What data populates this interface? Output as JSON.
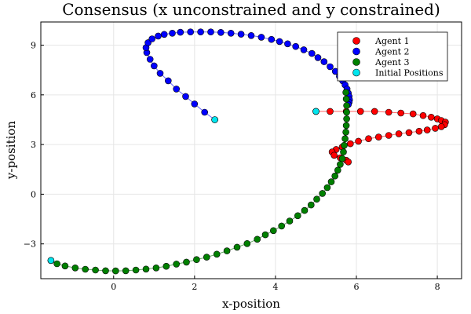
{
  "chart_data": {
    "type": "scatter",
    "title": "Consensus (x unconstrained and y constrained)",
    "xlabel": "x-position",
    "ylabel": "y-position",
    "xlim": [
      -1.8,
      8.6
    ],
    "ylim": [
      -5.1,
      10.4
    ],
    "xticks": [
      0,
      2,
      4,
      6,
      8
    ],
    "yticks": [
      -3,
      0,
      3,
      6,
      9
    ],
    "ytick_labels": [
      "−3",
      "0",
      "3",
      "6",
      "9"
    ],
    "grid": true,
    "legend_position": "top-right",
    "series": [
      {
        "name": "Agent 1",
        "color": "#ff0000",
        "line_color": "#ff6666",
        "points": [
          [
            5.0,
            5.0
          ],
          [
            5.35,
            5.0
          ],
          [
            5.75,
            5.0
          ],
          [
            6.1,
            5.0
          ],
          [
            6.45,
            5.0
          ],
          [
            6.8,
            4.95
          ],
          [
            7.1,
            4.9
          ],
          [
            7.4,
            4.85
          ],
          [
            7.65,
            4.75
          ],
          [
            7.85,
            4.65
          ],
          [
            8.0,
            4.55
          ],
          [
            8.1,
            4.45
          ],
          [
            8.2,
            4.35
          ],
          [
            8.18,
            4.2
          ],
          [
            8.1,
            4.08
          ],
          [
            7.95,
            3.98
          ],
          [
            7.75,
            3.88
          ],
          [
            7.55,
            3.8
          ],
          [
            7.3,
            3.72
          ],
          [
            7.05,
            3.65
          ],
          [
            6.8,
            3.55
          ],
          [
            6.55,
            3.45
          ],
          [
            6.3,
            3.35
          ],
          [
            6.05,
            3.2
          ],
          [
            5.85,
            3.05
          ],
          [
            5.65,
            2.85
          ],
          [
            5.5,
            2.7
          ],
          [
            5.4,
            2.55
          ],
          [
            5.45,
            2.35
          ],
          [
            5.6,
            2.2
          ],
          [
            5.75,
            2.05
          ],
          [
            5.8,
            1.95
          ]
        ]
      },
      {
        "name": "Agent 2",
        "color": "#0000ff",
        "line_color": "#6666ff",
        "points": [
          [
            2.5,
            4.5
          ],
          [
            2.25,
            4.95
          ],
          [
            2.0,
            5.45
          ],
          [
            1.78,
            5.9
          ],
          [
            1.55,
            6.35
          ],
          [
            1.35,
            6.85
          ],
          [
            1.15,
            7.3
          ],
          [
            1.0,
            7.75
          ],
          [
            0.9,
            8.15
          ],
          [
            0.82,
            8.55
          ],
          [
            0.8,
            8.85
          ],
          [
            0.85,
            9.15
          ],
          [
            0.95,
            9.38
          ],
          [
            1.1,
            9.55
          ],
          [
            1.25,
            9.65
          ],
          [
            1.45,
            9.72
          ],
          [
            1.65,
            9.78
          ],
          [
            1.9,
            9.8
          ],
          [
            2.15,
            9.8
          ],
          [
            2.4,
            9.8
          ],
          [
            2.65,
            9.77
          ],
          [
            2.9,
            9.72
          ],
          [
            3.15,
            9.66
          ],
          [
            3.4,
            9.58
          ],
          [
            3.65,
            9.48
          ],
          [
            3.9,
            9.35
          ],
          [
            4.1,
            9.22
          ],
          [
            4.3,
            9.08
          ],
          [
            4.5,
            8.92
          ],
          [
            4.7,
            8.72
          ],
          [
            4.9,
            8.5
          ],
          [
            5.05,
            8.25
          ],
          [
            5.2,
            8.0
          ],
          [
            5.35,
            7.7
          ],
          [
            5.48,
            7.42
          ],
          [
            5.58,
            7.12
          ],
          [
            5.66,
            6.85
          ],
          [
            5.72,
            6.6
          ],
          [
            5.77,
            6.35
          ],
          [
            5.8,
            6.1
          ],
          [
            5.82,
            5.9
          ],
          [
            5.83,
            5.7
          ],
          [
            5.82,
            5.55
          ],
          [
            5.8,
            5.42
          ]
        ]
      },
      {
        "name": "Agent 3",
        "color": "#008000",
        "line_color": "#66aa66",
        "points": [
          [
            -1.55,
            -4.0
          ],
          [
            -1.4,
            -4.2
          ],
          [
            -1.2,
            -4.33
          ],
          [
            -0.95,
            -4.45
          ],
          [
            -0.7,
            -4.53
          ],
          [
            -0.45,
            -4.58
          ],
          [
            -0.2,
            -4.62
          ],
          [
            0.05,
            -4.63
          ],
          [
            0.3,
            -4.62
          ],
          [
            0.55,
            -4.58
          ],
          [
            0.8,
            -4.52
          ],
          [
            1.05,
            -4.45
          ],
          [
            1.3,
            -4.35
          ],
          [
            1.55,
            -4.22
          ],
          [
            1.8,
            -4.1
          ],
          [
            2.05,
            -3.95
          ],
          [
            2.3,
            -3.8
          ],
          [
            2.55,
            -3.62
          ],
          [
            2.8,
            -3.42
          ],
          [
            3.05,
            -3.2
          ],
          [
            3.3,
            -2.98
          ],
          [
            3.55,
            -2.72
          ],
          [
            3.75,
            -2.45
          ],
          [
            3.95,
            -2.2
          ],
          [
            4.15,
            -1.92
          ],
          [
            4.35,
            -1.62
          ],
          [
            4.55,
            -1.3
          ],
          [
            4.72,
            -0.98
          ],
          [
            4.88,
            -0.65
          ],
          [
            5.02,
            -0.3
          ],
          [
            5.16,
            0.05
          ],
          [
            5.28,
            0.4
          ],
          [
            5.38,
            0.75
          ],
          [
            5.47,
            1.1
          ],
          [
            5.54,
            1.45
          ],
          [
            5.6,
            1.8
          ],
          [
            5.65,
            2.15
          ],
          [
            5.68,
            2.55
          ],
          [
            5.7,
            2.95
          ],
          [
            5.72,
            3.35
          ],
          [
            5.74,
            3.75
          ],
          [
            5.75,
            4.15
          ],
          [
            5.76,
            4.55
          ],
          [
            5.76,
            4.95
          ],
          [
            5.76,
            5.35
          ],
          [
            5.75,
            5.75
          ],
          [
            5.74,
            6.15
          ]
        ]
      },
      {
        "name": "Initial Positions",
        "color": "#00e5ee",
        "line_color": "none",
        "points": [
          [
            5.0,
            5.0
          ],
          [
            2.5,
            4.5
          ],
          [
            -1.55,
            -4.0
          ]
        ]
      }
    ]
  }
}
